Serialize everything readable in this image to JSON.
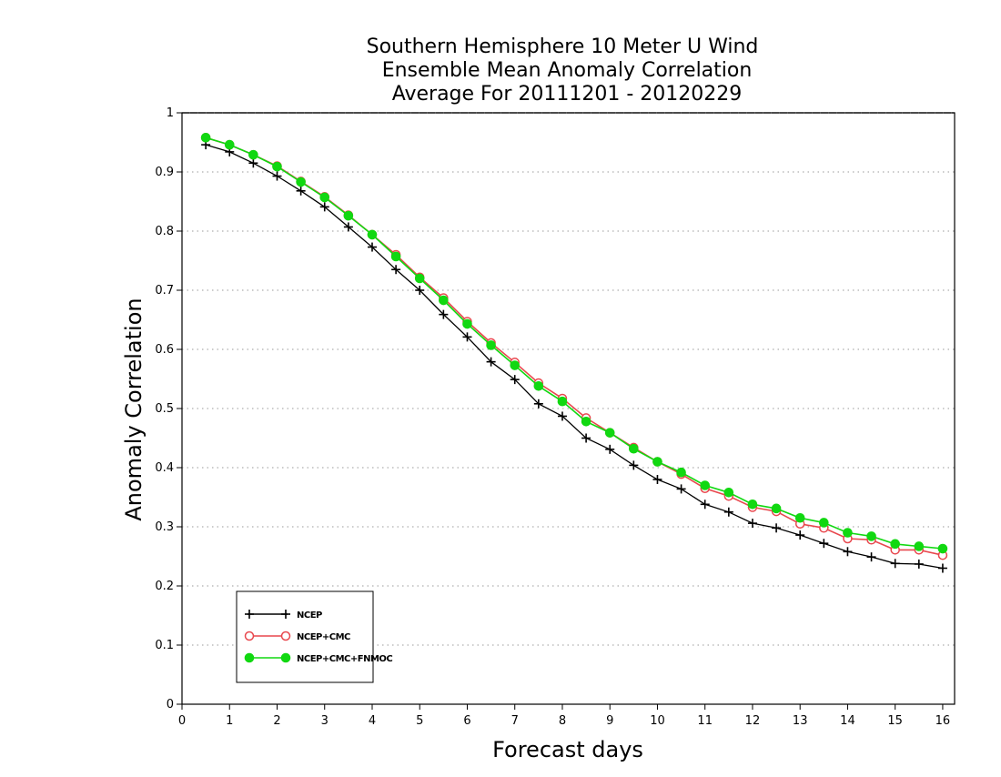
{
  "chart_data": {
    "type": "line",
    "title_lines": [
      "Southern Hemisphere 10 Meter U Wind",
      "Ensemble Mean Anomaly Correlation",
      "Average For 20111201 - 20120229"
    ],
    "xlabel": "Forecast days",
    "ylabel": "Anomaly Correlation",
    "xlim": [
      0,
      16.25
    ],
    "ylim": [
      0,
      1
    ],
    "x_ticks": [
      0,
      1,
      2,
      3,
      4,
      5,
      6,
      7,
      8,
      9,
      10,
      11,
      12,
      13,
      14,
      15,
      16
    ],
    "x_tick_labels": [
      "0",
      "1",
      "2",
      "3",
      "4",
      "5",
      "6",
      "7",
      "8",
      "9",
      "10",
      "11",
      "12",
      "13",
      "14",
      "15",
      "16"
    ],
    "y_ticks": [
      0,
      0.1,
      0.2,
      0.3,
      0.4,
      0.5,
      0.6,
      0.7,
      0.8,
      0.9,
      1
    ],
    "y_tick_labels": [
      "0",
      "0.1",
      "0.2",
      "0.3",
      "0.4",
      "0.5",
      "0.6",
      "0.7",
      "0.8",
      "0.9",
      "1"
    ],
    "grid": "horizontal-dotted",
    "legend_position": "bottom-left",
    "x": [
      0.5,
      1,
      1.5,
      2,
      2.5,
      3,
      3.5,
      4,
      4.5,
      5,
      5.5,
      6,
      6.5,
      7,
      7.5,
      8,
      8.5,
      9,
      9.5,
      10,
      10.5,
      11,
      11.5,
      12,
      12.5,
      13,
      13.5,
      14,
      14.5,
      15,
      15.5,
      16
    ],
    "series": [
      {
        "name": "NCEP",
        "color": "#000000",
        "marker": "plus",
        "values": [
          0.946,
          0.934,
          0.915,
          0.893,
          0.868,
          0.841,
          0.807,
          0.773,
          0.735,
          0.7,
          0.659,
          0.621,
          0.579,
          0.549,
          0.508,
          0.487,
          0.45,
          0.431,
          0.404,
          0.38,
          0.364,
          0.338,
          0.325,
          0.306,
          0.298,
          0.286,
          0.272,
          0.258,
          0.249,
          0.238,
          0.237,
          0.23
        ]
      },
      {
        "name": "NCEP+CMC",
        "color": "#e8474d",
        "marker": "open-circle",
        "values": [
          0.958,
          0.946,
          0.929,
          0.91,
          0.884,
          0.858,
          0.827,
          0.794,
          0.76,
          0.722,
          0.687,
          0.647,
          0.611,
          0.578,
          0.543,
          0.517,
          0.484,
          0.459,
          0.434,
          0.41,
          0.389,
          0.365,
          0.352,
          0.333,
          0.326,
          0.305,
          0.298,
          0.28,
          0.278,
          0.261,
          0.261,
          0.252
        ]
      },
      {
        "name": "NCEP+CMC+FNMOC",
        "color": "#11d811",
        "marker": "filled-circle",
        "values": [
          0.958,
          0.946,
          0.929,
          0.909,
          0.883,
          0.857,
          0.826,
          0.794,
          0.757,
          0.72,
          0.683,
          0.643,
          0.607,
          0.573,
          0.538,
          0.512,
          0.478,
          0.459,
          0.432,
          0.41,
          0.392,
          0.37,
          0.358,
          0.338,
          0.331,
          0.315,
          0.307,
          0.29,
          0.284,
          0.271,
          0.267,
          0.263
        ]
      }
    ]
  }
}
